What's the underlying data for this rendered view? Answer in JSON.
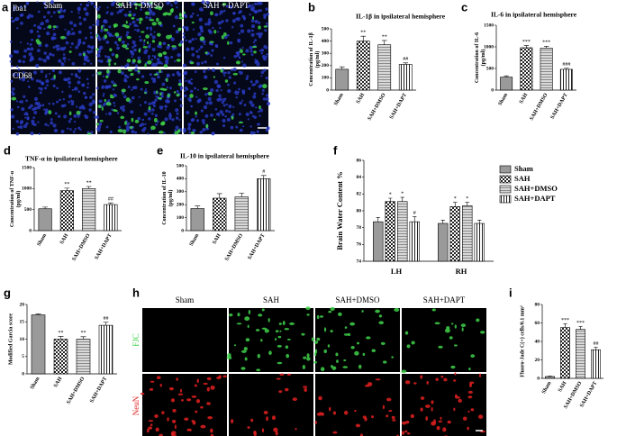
{
  "panel_labels": [
    "a",
    "b",
    "c",
    "d",
    "e",
    "f",
    "g",
    "h",
    "i"
  ],
  "micrographs_a": {
    "columns": [
      "Sham",
      "SAH + DMSO",
      "SAH + DAPT"
    ],
    "rows": [
      "Iba1",
      "CD68"
    ]
  },
  "micrographs_h": {
    "columns": [
      "Sham",
      "SAH",
      "SAH+DMSO",
      "SAH+DAPT"
    ],
    "rows": [
      "FJC",
      "NeuN"
    ]
  },
  "chart_data": [
    {
      "type": "bar",
      "title": "IL-1β  in ipsilateral hemisphere",
      "y_label": [
        "Concentration of IL-1β",
        "(pg/ml)"
      ],
      "categories": [
        "Sham",
        "SAH",
        "SAH+DMSO",
        "SAH+DAPT"
      ],
      "values": [
        170,
        400,
        370,
        210
      ],
      "errors": [
        20,
        40,
        35,
        12
      ],
      "annotations": [
        null,
        "**",
        "**",
        "##"
      ],
      "fills": [
        "gray",
        "checker",
        "hlines",
        "vlines"
      ],
      "ylim": [
        0,
        500
      ],
      "yticks": [
        0,
        100,
        200,
        300,
        400,
        500
      ]
    },
    {
      "type": "bar",
      "title": "IL-6  in ipsilateral hemisphere",
      "y_label": [
        "Concentration of IL-6",
        "(pg/ml)"
      ],
      "categories": [
        "Sham",
        "SAH",
        "SAH+DMSO",
        "SAH+DAPT"
      ],
      "values": [
        300,
        980,
        970,
        480
      ],
      "errors": [
        30,
        50,
        45,
        25
      ],
      "annotations": [
        null,
        "***",
        "***",
        "###"
      ],
      "fills": [
        "gray",
        "checker",
        "hlines",
        "vlines"
      ],
      "ylim": [
        0,
        1500
      ],
      "yticks": [
        0,
        500,
        1000,
        1500
      ]
    },
    {
      "type": "bar",
      "title": "TNF-α  in ipsilateral hemisphere",
      "y_label": [
        "Concentration of TNF-α",
        "(pg/ml)"
      ],
      "categories": [
        "Sham",
        "SAH",
        "SAH+DMSO",
        "SAH+DAPT"
      ],
      "values": [
        520,
        950,
        1000,
        620
      ],
      "errors": [
        40,
        60,
        50,
        40
      ],
      "annotations": [
        null,
        "**",
        "**",
        "##"
      ],
      "fills": [
        "gray",
        "checker",
        "hlines",
        "vlines"
      ],
      "ylim": [
        0,
        1500
      ],
      "yticks": [
        0,
        500,
        1000,
        1500
      ]
    },
    {
      "type": "bar",
      "title": "IL-10 in ipsilateral hemisphere",
      "y_label": [
        "Concentration of IL-10",
        "(pg/ml)"
      ],
      "categories": [
        "Sham",
        "SAH",
        "SAH+DMSO",
        "SAH+DAPT"
      ],
      "values": [
        170,
        250,
        260,
        400
      ],
      "errors": [
        20,
        35,
        30,
        25
      ],
      "annotations": [
        null,
        null,
        null,
        "#"
      ],
      "fills": [
        "gray",
        "checker",
        "hlines",
        "vlines"
      ],
      "ylim": [
        0,
        500
      ],
      "yticks": [
        0,
        100,
        200,
        300,
        400,
        500
      ]
    },
    {
      "type": "grouped_bar",
      "y_label": [
        "Brain Water Content %"
      ],
      "categories": [
        "LH",
        "RH"
      ],
      "series": [
        {
          "name": "Sham",
          "fill": "gray",
          "values": [
            78.7,
            78.5
          ],
          "errors": [
            0.5,
            0.4
          ],
          "annotations": [
            null,
            null
          ]
        },
        {
          "name": "SAH",
          "fill": "checker",
          "values": [
            81.1,
            80.5
          ],
          "errors": [
            0.4,
            0.5
          ],
          "annotations": [
            "*",
            "*"
          ]
        },
        {
          "name": "SAH+DMSO",
          "fill": "hlines",
          "values": [
            81.1,
            80.6
          ],
          "errors": [
            0.5,
            0.4
          ],
          "annotations": [
            "*",
            "*"
          ]
        },
        {
          "name": "SAH+DAPT",
          "fill": "vlines",
          "values": [
            78.7,
            78.5
          ],
          "errors": [
            0.6,
            0.4
          ],
          "annotations": [
            "#",
            null
          ]
        }
      ],
      "legend": "right",
      "ylim": [
        74,
        86
      ],
      "yticks": [
        74,
        76,
        78,
        80,
        82,
        84,
        86
      ]
    },
    {
      "type": "bar",
      "y_label": [
        "Modified Garcia score"
      ],
      "categories": [
        "Sham",
        "SAH",
        "SAH+DMSO",
        "SAH+DAPT"
      ],
      "values": [
        17,
        10,
        10,
        14
      ],
      "errors": [
        0.3,
        0.8,
        0.7,
        0.9
      ],
      "annotations": [
        null,
        "**",
        "**",
        "##"
      ],
      "fills": [
        "gray",
        "checker",
        "hlines",
        "vlines"
      ],
      "ylim": [
        0,
        20
      ],
      "yticks": [
        0,
        5,
        10,
        15,
        20
      ]
    },
    {
      "type": "bar",
      "y_label": [
        "Fluoro-Jade C(+) cells/0.1 mm²"
      ],
      "categories": [
        "Sham",
        "SAH",
        "SAH+DMSO",
        "SAH+DAPT"
      ],
      "values": [
        2,
        55,
        53,
        31
      ],
      "errors": [
        0.5,
        4,
        3,
        2.5
      ],
      "annotations": [
        null,
        "***",
        "***",
        "##"
      ],
      "fills": [
        "gray",
        "checker",
        "hlines",
        "vlines"
      ],
      "ylim": [
        0,
        80
      ],
      "yticks": [
        0,
        20,
        40,
        60,
        80
      ]
    }
  ]
}
